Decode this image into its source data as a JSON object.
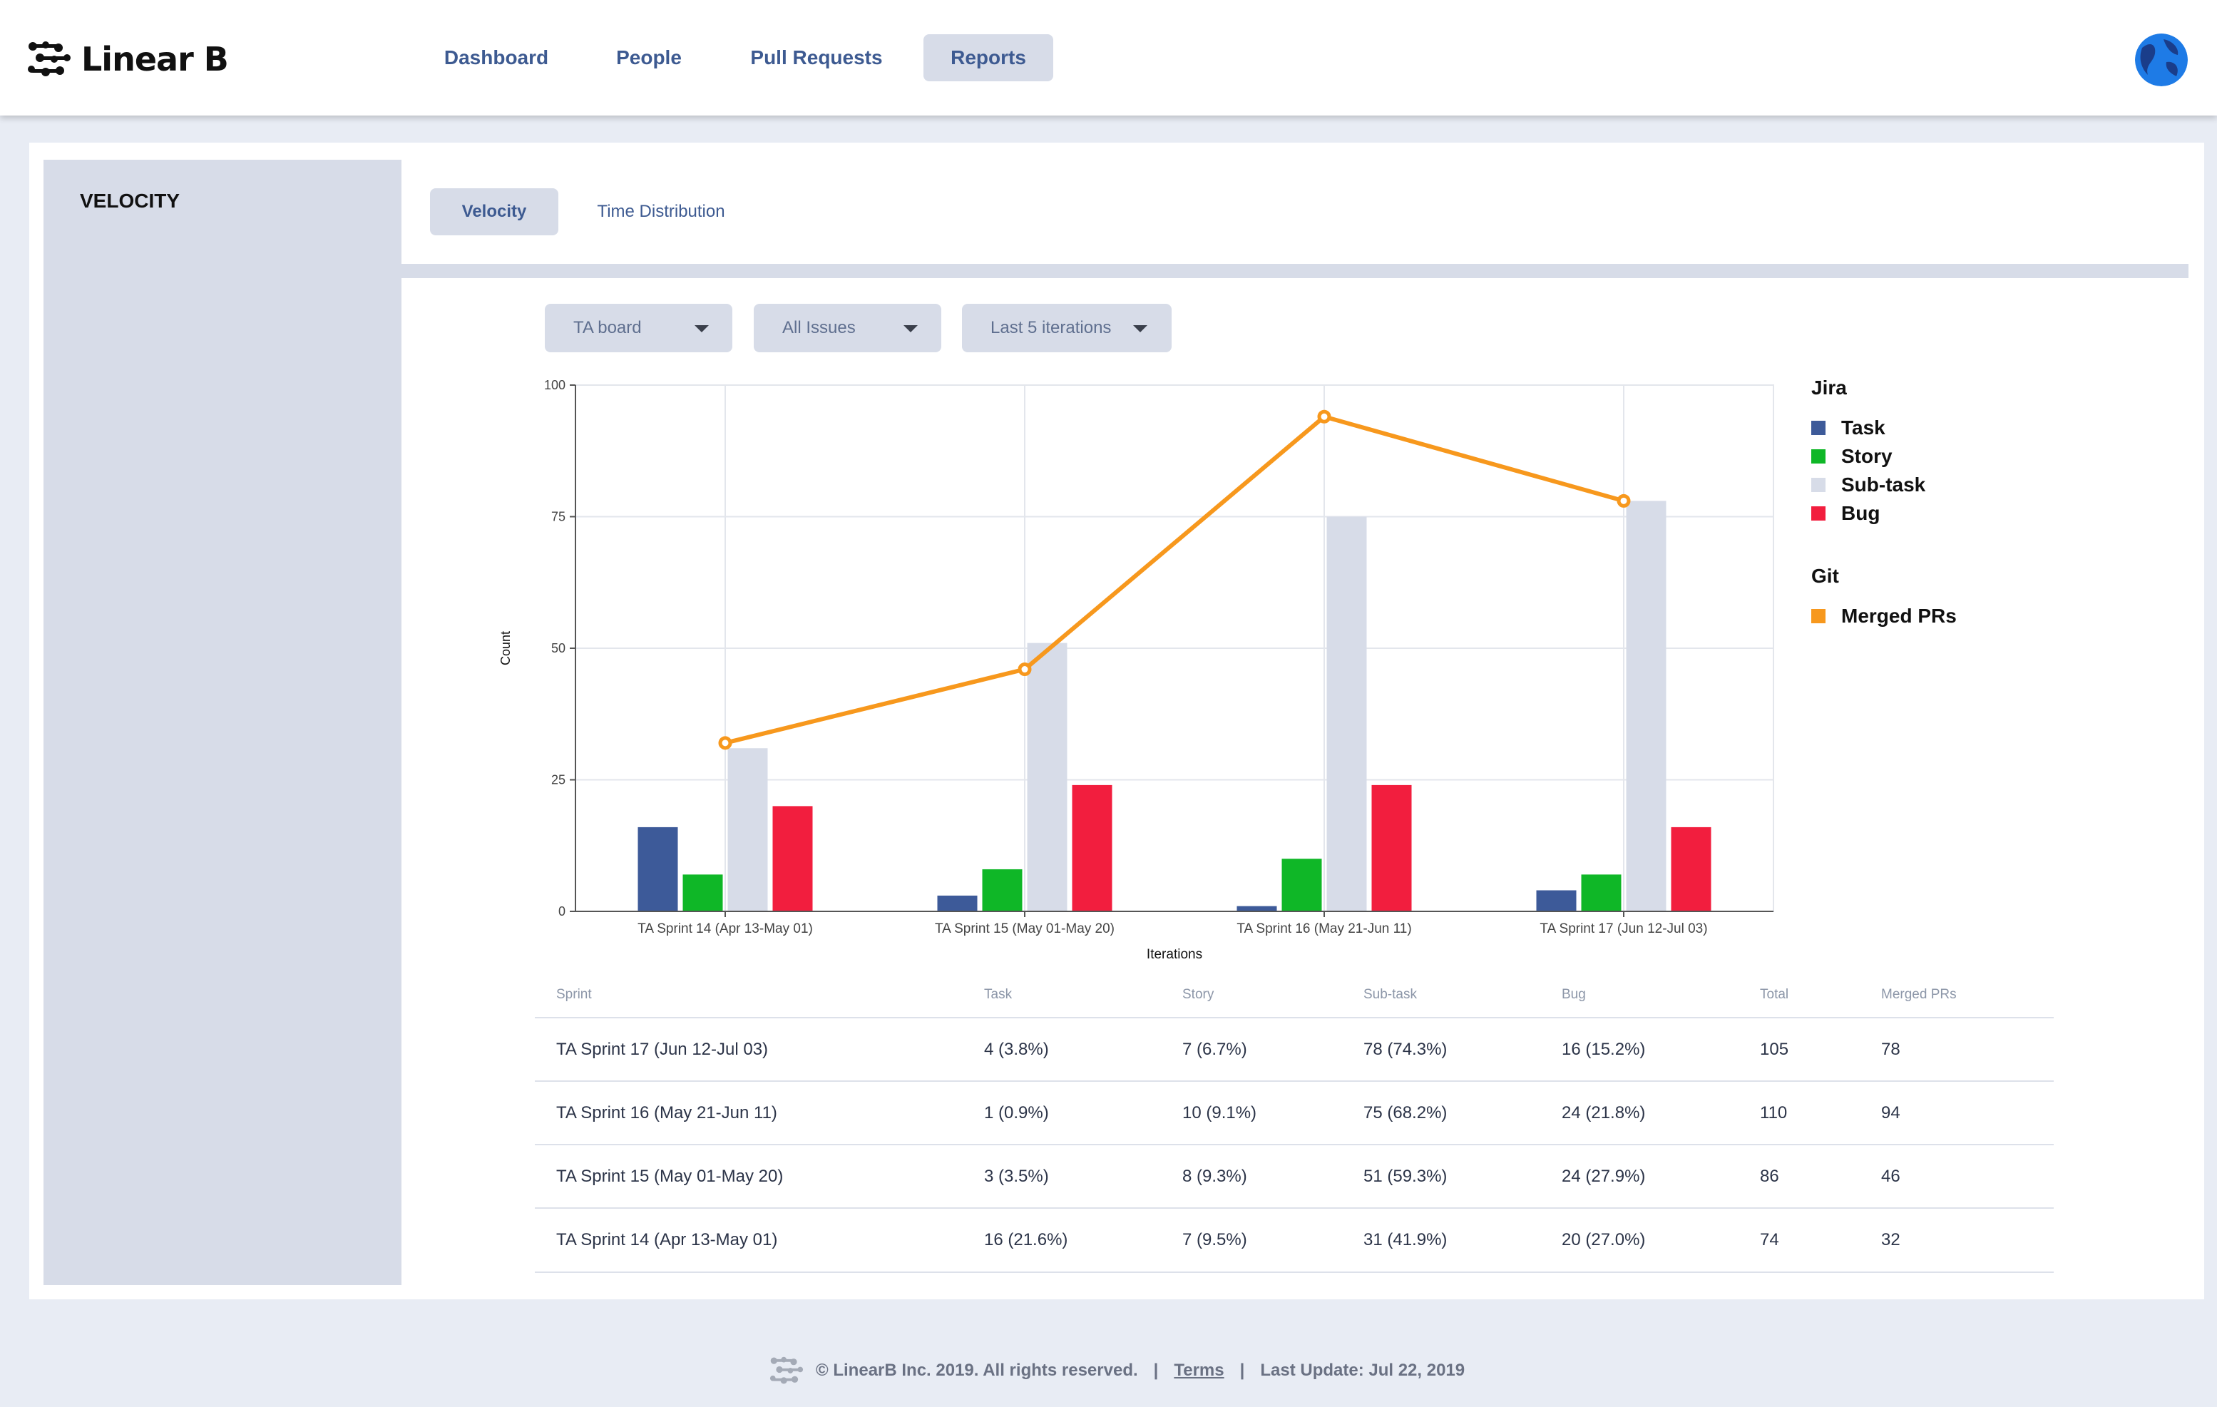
{
  "app": {
    "brand": "Linear B",
    "nav": [
      {
        "label": "Dashboard"
      },
      {
        "label": "People"
      },
      {
        "label": "Pull Requests"
      },
      {
        "label": "Reports",
        "active": true
      }
    ]
  },
  "sidebar": {
    "title": "VELOCITY"
  },
  "tabs": [
    {
      "label": "Velocity",
      "active": true
    },
    {
      "label": "Time Distribution"
    }
  ],
  "filters": [
    {
      "value": "TA board"
    },
    {
      "value": "All Issues"
    },
    {
      "value": "Last 5 iterations"
    }
  ],
  "legend": {
    "jira_heading": "Jira",
    "jira_items": [
      {
        "label": "Task",
        "color": "#3d5a99"
      },
      {
        "label": "Story",
        "color": "#0fb727"
      },
      {
        "label": "Sub-task",
        "color": "#d7dce8"
      },
      {
        "label": "Bug",
        "color": "#f21e3e"
      }
    ],
    "git_heading": "Git",
    "git_items": [
      {
        "label": "Merged PRs",
        "color": "#f7981d"
      }
    ]
  },
  "chart_data": {
    "type": "bar",
    "categories": [
      "TA Sprint 14 (Apr 13-May 01)",
      "TA Sprint 15 (May 01-May 20)",
      "TA Sprint 16 (May 21-Jun 11)",
      "TA Sprint 17 (Jun 12-Jul 03)"
    ],
    "series": [
      {
        "name": "Task",
        "type": "bar",
        "values": [
          16,
          3,
          1,
          4
        ],
        "color": "#3d5a99"
      },
      {
        "name": "Story",
        "type": "bar",
        "values": [
          7,
          8,
          10,
          7
        ],
        "color": "#0fb727"
      },
      {
        "name": "Sub-task",
        "type": "bar",
        "values": [
          31,
          51,
          75,
          78
        ],
        "color": "#d7dce8"
      },
      {
        "name": "Bug",
        "type": "bar",
        "values": [
          20,
          24,
          24,
          16
        ],
        "color": "#f21e3e"
      },
      {
        "name": "Merged PRs",
        "type": "line",
        "values": [
          32,
          46,
          94,
          78
        ],
        "color": "#f7981d"
      }
    ],
    "xlabel": "Iterations",
    "ylabel": "Count",
    "ylim": [
      0,
      100
    ],
    "yticks": [
      "0",
      "25",
      "50",
      "75",
      "100"
    ],
    "grid": true,
    "legend_position": "right"
  },
  "table": {
    "headers": [
      "Sprint",
      "Task",
      "Story",
      "Sub-task",
      "Bug",
      "Total",
      "Merged PRs"
    ],
    "rows": [
      [
        "TA Sprint 17 (Jun 12-Jul 03)",
        "4 (3.8%)",
        "7 (6.7%)",
        "78 (74.3%)",
        "16 (15.2%)",
        "105",
        "78"
      ],
      [
        "TA Sprint 16 (May 21-Jun 11)",
        "1 (0.9%)",
        "10 (9.1%)",
        "75 (68.2%)",
        "24 (21.8%)",
        "110",
        "94"
      ],
      [
        "TA Sprint 15 (May 01-May 20)",
        "3 (3.5%)",
        "8 (9.3%)",
        "51 (59.3%)",
        "24 (27.9%)",
        "86",
        "46"
      ],
      [
        "TA Sprint 14 (Apr 13-May 01)",
        "16 (21.6%)",
        "7 (9.5%)",
        "31 (41.9%)",
        "20 (27.0%)",
        "74",
        "32"
      ]
    ]
  },
  "footer": {
    "copyright": "© LinearB Inc. 2019. All rights reserved.",
    "separator": "|",
    "terms": "Terms",
    "last_update": "Last Update: Jul 22, 2019"
  }
}
